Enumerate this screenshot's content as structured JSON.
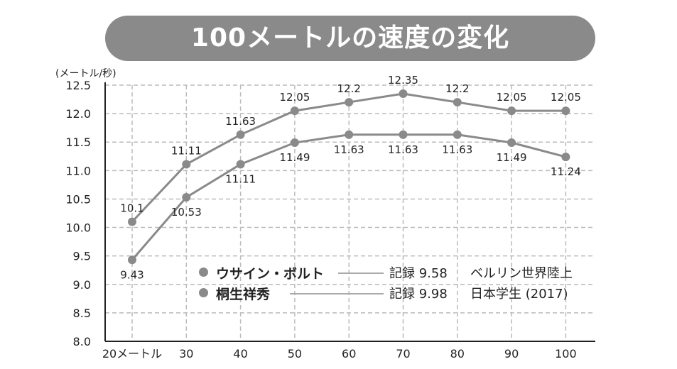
{
  "title": "100メートルの速度の変化",
  "ylabel": "(メートル/秒)",
  "chart_data": {
    "type": "line",
    "x": [
      20,
      30,
      40,
      50,
      60,
      70,
      80,
      90,
      100
    ],
    "x_tick_labels": [
      "20メートル",
      "30",
      "40",
      "50",
      "60",
      "70",
      "80",
      "90",
      "100"
    ],
    "ylim": [
      8.0,
      12.5
    ],
    "y_ticks": [
      "8.0",
      "8.5",
      "9.0",
      "9.5",
      "10.0",
      "10.5",
      "11.0",
      "11.5",
      "12.0",
      "12.5"
    ],
    "grid": true,
    "series": [
      {
        "name": "ウサイン・ボルト",
        "values": [
          10.1,
          11.11,
          11.63,
          12.05,
          12.2,
          12.35,
          12.2,
          12.05,
          12.05
        ],
        "labels": [
          "10.1",
          "11.11",
          "11.63",
          "12.05",
          "12.2",
          "12.35",
          "12.2",
          "12.05",
          "12.05"
        ],
        "label_position": "above"
      },
      {
        "name": "桐生祥秀",
        "values": [
          9.43,
          10.53,
          11.11,
          11.49,
          11.63,
          11.63,
          11.63,
          11.49,
          11.24
        ],
        "labels": [
          "9.43",
          "10.53",
          "11.11",
          "11.49",
          "11.63",
          "11.63",
          "11.63",
          "11.49",
          "11.24"
        ],
        "label_position": "below"
      }
    ],
    "color": "#8a8a8a"
  },
  "legend": [
    {
      "name": "ウサイン・ボルト",
      "record": "記録 9.58",
      "note": "ベルリン世界陸上"
    },
    {
      "name": "桐生祥秀",
      "record": "記録 9.98",
      "note": "日本学生 (2017)"
    }
  ]
}
